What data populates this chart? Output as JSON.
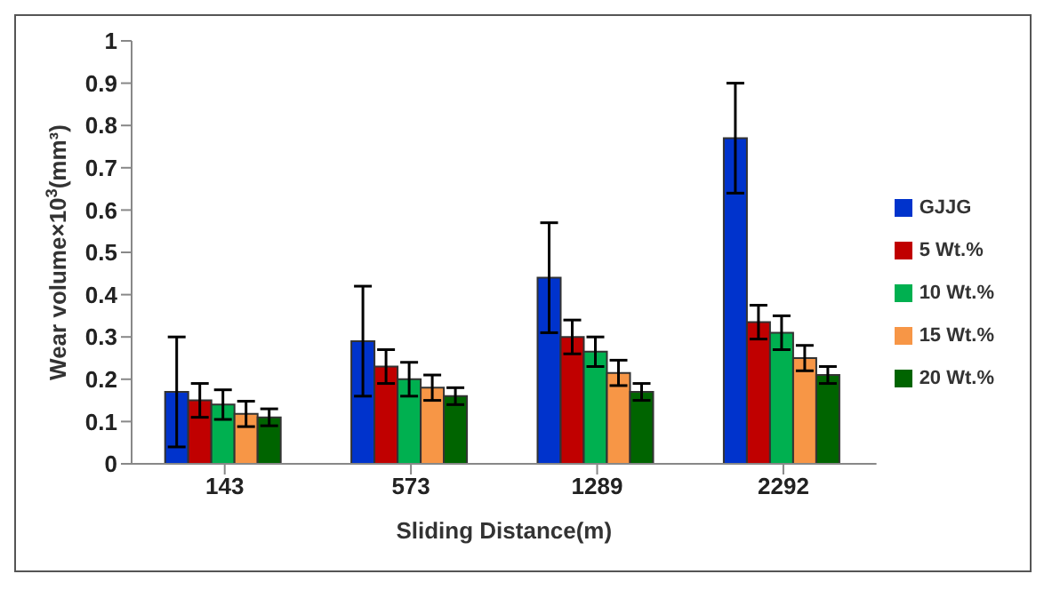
{
  "chart_data": {
    "type": "bar",
    "xlabel": "Sliding Distance(m)",
    "ylabel": "Wear volume×10$^{3}$(mm³)",
    "categories": [
      "143",
      "573",
      "1289",
      "2292"
    ],
    "series": [
      {
        "name": "GJJG",
        "color": "#0033cc",
        "values": [
          0.17,
          0.29,
          0.44,
          0.77
        ],
        "errors": [
          0.13,
          0.13,
          0.13,
          0.13
        ]
      },
      {
        "name": "5 Wt.%",
        "color": "#c00000",
        "values": [
          0.15,
          0.23,
          0.3,
          0.335
        ],
        "errors": [
          0.04,
          0.04,
          0.04,
          0.04
        ]
      },
      {
        "name": "10 Wt.%",
        "color": "#00b050",
        "values": [
          0.14,
          0.2,
          0.265,
          0.31
        ],
        "errors": [
          0.035,
          0.04,
          0.035,
          0.04
        ]
      },
      {
        "name": "15 Wt.%",
        "color": "#f79646",
        "values": [
          0.118,
          0.18,
          0.215,
          0.25
        ],
        "errors": [
          0.03,
          0.03,
          0.03,
          0.03
        ]
      },
      {
        "name": "20 Wt.%",
        "color": "#006400",
        "values": [
          0.11,
          0.16,
          0.17,
          0.21
        ],
        "errors": [
          0.02,
          0.02,
          0.02,
          0.02
        ]
      }
    ],
    "ylim": [
      0,
      1
    ],
    "yticks": [
      0,
      0.1,
      0.2,
      0.3,
      0.4,
      0.5,
      0.6,
      0.7,
      0.8,
      0.9,
      1
    ],
    "grid": false,
    "legend": "right"
  }
}
